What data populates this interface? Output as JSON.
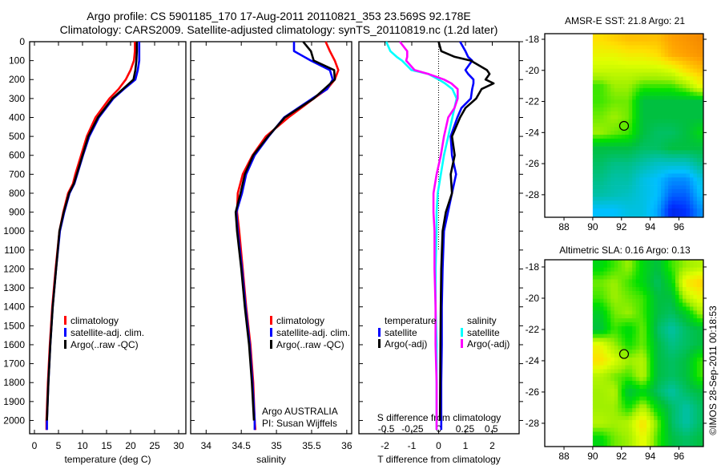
{
  "header": {
    "title_line1": "Argo profile: CS 5901185_170 17-Aug-2011 20110821_353 23.569S 92.178E",
    "title_line2": "Climatology: CARS2009. Satellite-adjusted climatology: synTS_20110819.nc (1.2d later)"
  },
  "colors": {
    "climatology": "#ff0000",
    "satellite": "#0000ff",
    "argo": "#000000",
    "sal_satellite": "#00ffff",
    "sal_argo": "#ff00ff"
  },
  "annotations": {
    "institution": "Argo AUSTRALIA",
    "pi": "PI: Susan Wijffels",
    "copyright": "©IMOS 28-Sep-2011 00:18:53"
  },
  "chart_data": [
    {
      "type": "line",
      "id": "temperature",
      "xlabel": "temperature (deg C)",
      "ylabel": "",
      "xlim": [
        -1,
        31.5
      ],
      "ylim": [
        0,
        2070
      ],
      "xticks": [
        "0",
        "5",
        "10",
        "15",
        "20",
        "25",
        "30"
      ],
      "yticks": [
        "0",
        "100",
        "200",
        "300",
        "400",
        "500",
        "600",
        "700",
        "800",
        "900",
        "1000",
        "1100",
        "1200",
        "1300",
        "1400",
        "1500",
        "1600",
        "1700",
        "1800",
        "1900",
        "2000"
      ],
      "legend": {
        "placement": "lower-left",
        "entries": [
          "climatology",
          "satellite-adj. clim.",
          "Argo(..raw -QC)"
        ]
      },
      "depth": [
        0,
        50,
        100,
        150,
        200,
        250,
        300,
        400,
        500,
        600,
        700,
        750,
        800,
        900,
        1000,
        1200,
        1400,
        1600,
        1800,
        2000,
        2050
      ],
      "series": [
        {
          "name": "climatology",
          "values": [
            20.9,
            20.9,
            20.7,
            20.0,
            19.0,
            17.5,
            15.6,
            12.7,
            10.9,
            9.7,
            8.5,
            8.0,
            7.0,
            6.0,
            5.2,
            4.4,
            3.7,
            3.2,
            2.8,
            2.5,
            2.5
          ]
        },
        {
          "name": "satellite-adj. clim.",
          "values": [
            21.8,
            21.8,
            21.8,
            21.5,
            21.0,
            18.6,
            16.4,
            13.4,
            11.4,
            10.1,
            8.9,
            8.3,
            7.3,
            6.2,
            5.3,
            4.5,
            3.8,
            3.3,
            2.9,
            2.6,
            2.6
          ]
        },
        {
          "name": "Argo(..raw -QC)",
          "values": [
            21.3,
            21.3,
            21.2,
            21.0,
            20.6,
            18.4,
            16.2,
            13.2,
            11.2,
            10.0,
            8.8,
            8.2,
            7.2,
            6.1,
            5.2,
            4.5,
            3.8,
            3.3,
            2.9,
            2.6,
            null
          ]
        }
      ]
    },
    {
      "type": "line",
      "id": "salinity",
      "xlabel": "salinity",
      "xlim": [
        33.78,
        36.07
      ],
      "ylim": [
        0,
        2070
      ],
      "xticks": [
        "34",
        "34.5",
        "35",
        "35.5",
        "36"
      ],
      "legend": {
        "placement": "lower-center",
        "entries": [
          "climatology",
          "satellite-adj. clim.",
          "Argo(..raw -QC)"
        ]
      },
      "depth": [
        0,
        50,
        100,
        150,
        200,
        250,
        300,
        400,
        500,
        600,
        700,
        800,
        900,
        1000,
        1200,
        1400,
        1600,
        1800,
        2000,
        2050
      ],
      "series": [
        {
          "name": "climatology",
          "values": [
            35.7,
            35.76,
            35.83,
            35.88,
            35.83,
            35.72,
            35.53,
            35.17,
            34.85,
            34.66,
            34.52,
            34.45,
            34.44,
            34.47,
            34.52,
            34.57,
            34.63,
            34.67,
            34.69,
            34.7
          ]
        },
        {
          "name": "satellite-adj. clim.",
          "values": [
            35.25,
            35.25,
            35.49,
            35.76,
            35.8,
            35.72,
            35.51,
            35.11,
            34.89,
            34.69,
            34.57,
            34.51,
            34.43,
            34.45,
            34.51,
            34.56,
            34.62,
            34.66,
            34.69,
            34.69
          ]
        },
        {
          "name": "Argo(..raw -QC)",
          "values": [
            35.38,
            35.49,
            35.53,
            35.82,
            35.83,
            35.68,
            35.53,
            35.12,
            34.88,
            34.67,
            34.55,
            34.49,
            34.42,
            34.44,
            34.5,
            34.55,
            34.61,
            34.65,
            34.68,
            null
          ]
        }
      ]
    },
    {
      "type": "line",
      "id": "differences",
      "xlabel": "T difference from climatology",
      "x2label": "S difference from climatology",
      "xlim": [
        -2.97,
        3.0
      ],
      "x2lim": [
        -0.76,
        0.765
      ],
      "ylim": [
        0,
        2070
      ],
      "xticks": [
        "-2",
        "-1",
        "0",
        "1",
        "2"
      ],
      "x2ticks": [
        "-0.5",
        "-0.25",
        "0",
        "0.25",
        "0.5"
      ],
      "legend": {
        "placement": "center",
        "groups": [
          {
            "title": "temperature",
            "entries": [
              "satellite",
              "Argo(-adj)"
            ]
          },
          {
            "title": "salinity",
            "entries": [
              "satellite",
              "Argo(-adj)"
            ]
          }
        ]
      },
      "depth": [
        0,
        50,
        80,
        100,
        150,
        170,
        200,
        220,
        250,
        300,
        350,
        400,
        500,
        600,
        700,
        800,
        900,
        1000,
        1200,
        1400,
        1600,
        1800,
        2000,
        2050
      ],
      "series": [
        {
          "name": "T satellite",
          "axis": "T",
          "values": [
            0.8,
            1.0,
            1.1,
            1.25,
            1.0,
            1.1,
            1.3,
            1.3,
            1.25,
            1.2,
            0.85,
            0.7,
            0.45,
            0.5,
            0.65,
            0.5,
            0.35,
            0.2,
            0.15,
            0.12,
            0.12,
            0.1,
            0.1,
            0.1
          ]
        },
        {
          "name": "T Argo(-adj)",
          "axis": "T",
          "values": [
            0.0,
            0.1,
            0.6,
            1.2,
            1.8,
            1.9,
            1.75,
            2.05,
            1.6,
            1.4,
            1.0,
            0.8,
            0.5,
            0.6,
            0.45,
            0.5,
            0.27,
            0.15,
            0.1,
            0.08,
            0.07,
            0.06,
            0.05,
            null
          ]
        },
        {
          "name": "S satellite",
          "axis": "S",
          "values": [
            -0.5,
            -0.46,
            -0.4,
            -0.35,
            -0.26,
            -0.1,
            0.0,
            0.06,
            0.13,
            0.17,
            0.15,
            0.13,
            0.09,
            0.05,
            0.02,
            -0.01,
            -0.02,
            -0.02,
            -0.03,
            -0.03,
            -0.02,
            -0.02,
            -0.02,
            -0.02
          ]
        },
        {
          "name": "S Argo(-adj)",
          "axis": "S",
          "values": [
            -0.37,
            -0.3,
            -0.3,
            -0.31,
            -0.23,
            -0.1,
            0.05,
            0.12,
            0.18,
            0.18,
            0.15,
            0.09,
            0.05,
            0.02,
            -0.02,
            -0.05,
            -0.05,
            -0.04,
            -0.04,
            -0.03,
            -0.03,
            -0.02,
            -0.02,
            -0.02
          ]
        }
      ]
    },
    {
      "type": "heatmap",
      "id": "sst-map",
      "title": "AMSR-E SST: 21.8 Argo: 21",
      "xticks": [
        "88",
        "90",
        "92",
        "94",
        "96"
      ],
      "yticks": [
        "-18",
        "-20",
        "-22",
        "-24",
        "-26",
        "-28"
      ],
      "xlim": [
        86.66,
        97.7
      ],
      "ylim": [
        -29.45,
        -17.64
      ],
      "clim": [
        17,
        25
      ],
      "lon0": 90,
      "lat0": -18,
      "step": 1,
      "argo_position": {
        "lon": 92.178,
        "lat": -23.569
      },
      "values": [
        [
          23.0,
          23.2,
          23.4,
          23.4,
          23.4,
          23.8,
          24.0,
          24.2
        ],
        [
          22.6,
          22.6,
          22.8,
          22.8,
          23.0,
          23.6,
          23.8,
          24.0
        ],
        [
          22.2,
          22.2,
          22.2,
          22.2,
          22.2,
          22.4,
          23.0,
          23.4
        ],
        [
          21.4,
          21.8,
          21.8,
          21.4,
          21.4,
          21.4,
          21.8,
          22.6
        ],
        [
          21.4,
          21.6,
          21.6,
          20.6,
          20.6,
          20.6,
          20.6,
          20.6
        ],
        [
          21.6,
          21.8,
          21.6,
          20.6,
          20.6,
          20.6,
          20.6,
          20.6
        ],
        [
          21.8,
          21.6,
          21.4,
          20.6,
          20.4,
          20.4,
          20.6,
          21.0
        ],
        [
          20.6,
          20.6,
          20.6,
          20.4,
          20.4,
          20.6,
          20.6,
          20.6
        ],
        [
          20.4,
          20.2,
          20.2,
          20.0,
          19.8,
          19.8,
          19.8,
          20.2
        ],
        [
          20.2,
          20.0,
          20.0,
          19.6,
          19.4,
          19.0,
          19.0,
          19.6
        ],
        [
          20.0,
          19.9,
          19.8,
          19.6,
          19.4,
          18.6,
          18.6,
          19.4
        ],
        [
          19.4,
          19.4,
          19.6,
          19.6,
          19.2,
          18.0,
          18.2,
          19.0
        ]
      ]
    },
    {
      "type": "heatmap",
      "id": "sla-map",
      "title": "Altimetric SLA: 0.16 Argo: 0.13",
      "xticks": [
        "88",
        "90",
        "92",
        "94",
        "96"
      ],
      "yticks": [
        "-18",
        "-20",
        "-22",
        "-24",
        "-26",
        "-28"
      ],
      "xlim": [
        86.66,
        97.7
      ],
      "ylim": [
        -29.49,
        -17.54
      ],
      "clim": [
        -0.3,
        0.5
      ],
      "lon0": 90,
      "lat0": -18,
      "step": 1,
      "argo_position": {
        "lon": 92.178,
        "lat": -23.569
      },
      "values": [
        [
          0.1,
          0.14,
          0.18,
          0.1,
          0.06,
          0.14,
          0.18,
          0.2
        ],
        [
          0.16,
          0.18,
          0.14,
          0.1,
          0.04,
          0.1,
          0.28,
          0.32
        ],
        [
          0.14,
          0.18,
          0.16,
          0.14,
          0.06,
          0.06,
          0.2,
          0.26
        ],
        [
          0.08,
          0.16,
          0.18,
          0.14,
          0.06,
          0.04,
          0.08,
          0.18
        ],
        [
          0.06,
          0.14,
          0.1,
          0.16,
          0.04,
          0.0,
          0.04,
          0.06
        ],
        [
          0.26,
          0.18,
          0.12,
          0.16,
          0.06,
          0.02,
          0.04,
          0.06
        ],
        [
          0.3,
          0.24,
          0.18,
          0.2,
          0.06,
          0.04,
          0.06,
          0.14
        ],
        [
          0.2,
          0.16,
          0.14,
          0.2,
          0.06,
          0.04,
          0.06,
          0.14
        ],
        [
          0.18,
          0.2,
          0.06,
          0.1,
          0.04,
          0.0,
          0.04,
          0.06
        ],
        [
          0.18,
          0.18,
          0.12,
          0.2,
          0.1,
          0.04,
          0.0,
          0.04
        ],
        [
          0.2,
          0.18,
          0.2,
          0.3,
          0.16,
          0.04,
          0.0,
          0.04
        ],
        [
          0.1,
          0.16,
          0.18,
          0.26,
          0.14,
          0.06,
          0.04,
          0.06
        ]
      ]
    }
  ]
}
